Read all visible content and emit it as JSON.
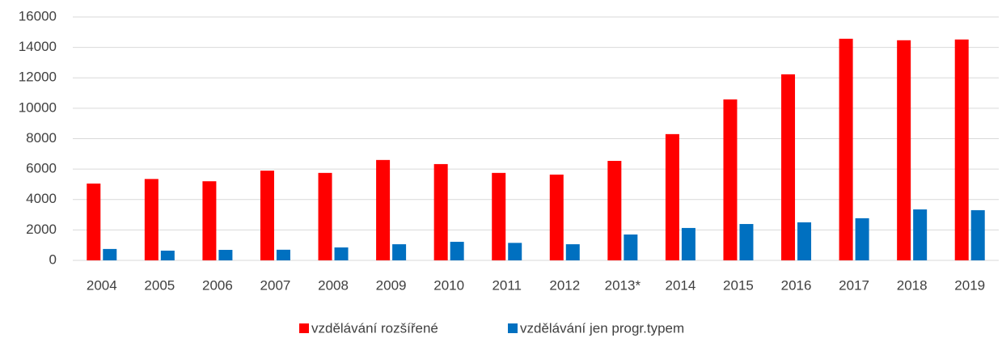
{
  "chart_data": {
    "type": "bar",
    "categories": [
      "2004",
      "2005",
      "2006",
      "2007",
      "2008",
      "2009",
      "2010",
      "2011",
      "2012",
      "2013*",
      "2014",
      "2015",
      "2016",
      "2017",
      "2018",
      "2019"
    ],
    "series": [
      {
        "name": "vzdělávání rozšířené",
        "color": "#ff0000",
        "values": [
          5050,
          5350,
          5200,
          5900,
          5750,
          6600,
          6330,
          5750,
          5640,
          6540,
          8300,
          10580,
          12230,
          14570,
          14470,
          14520
        ]
      },
      {
        "name": "vzdělávání jen progr.typem",
        "color": "#0070c0",
        "values": [
          750,
          640,
          690,
          700,
          850,
          1060,
          1220,
          1150,
          1060,
          1700,
          2130,
          2390,
          2500,
          2770,
          3350,
          3300
        ]
      }
    ],
    "ylim": [
      0,
      16000
    ],
    "yticks": [
      0,
      2000,
      4000,
      6000,
      8000,
      10000,
      12000,
      14000,
      16000
    ],
    "grid": true,
    "legend": "bottom"
  }
}
